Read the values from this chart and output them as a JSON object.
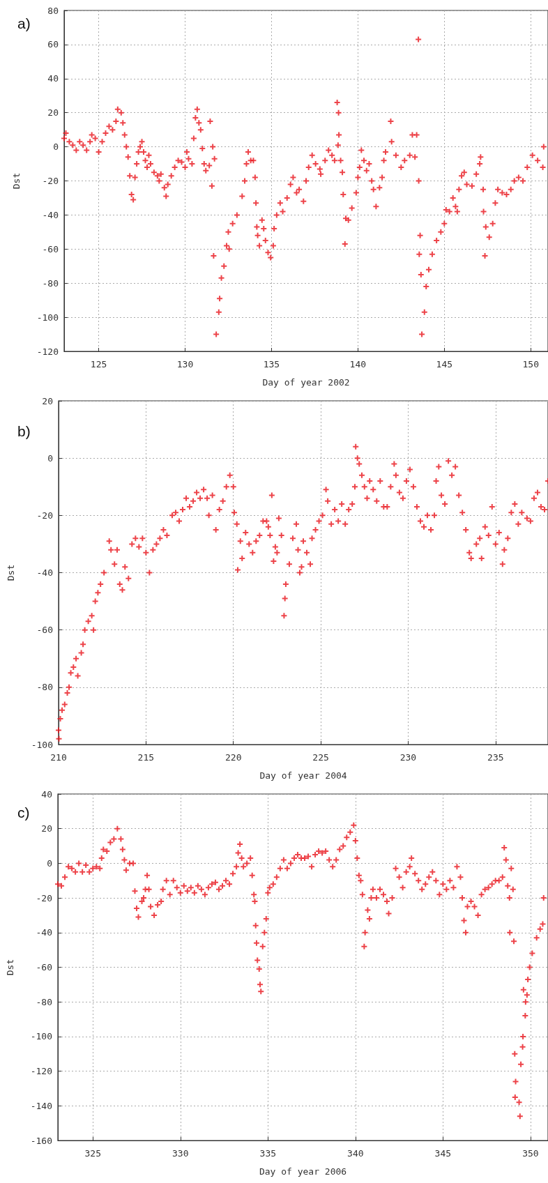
{
  "chart_data": [
    {
      "type": "scatter",
      "annotations": [
        "a)"
      ],
      "xlabel": "Day of year 2002",
      "ylabel": "Dst",
      "color": "#e8141c",
      "marker": "cross",
      "grid": true,
      "xlim": [
        123,
        151
      ],
      "xticks": [
        125,
        130,
        135,
        140,
        145,
        150
      ],
      "ylim": [
        -120,
        80
      ],
      "yticks": [
        -120,
        -100,
        -80,
        -60,
        -40,
        -20,
        0,
        20,
        40,
        60,
        80
      ],
      "x": [
        123.0,
        123.1,
        123.3,
        123.5,
        123.7,
        123.9,
        124.1,
        124.3,
        124.5,
        124.6,
        124.8,
        125.0,
        125.2,
        125.4,
        125.6,
        125.8,
        126.0,
        126.1,
        126.3,
        126.4,
        126.5,
        126.6,
        126.7,
        126.8,
        126.9,
        127.0,
        127.1,
        127.2,
        127.3,
        127.4,
        127.5,
        127.6,
        127.7,
        127.8,
        127.9,
        128.0,
        128.2,
        128.4,
        128.5,
        128.6,
        128.8,
        128.9,
        129.0,
        129.2,
        129.4,
        129.6,
        129.8,
        130.0,
        130.1,
        130.2,
        130.4,
        130.5,
        130.6,
        130.7,
        130.8,
        130.9,
        131.0,
        131.1,
        131.2,
        131.4,
        131.45,
        131.55,
        131.6,
        131.65,
        131.7,
        131.8,
        131.95,
        132.0,
        132.1,
        132.25,
        132.4,
        132.5,
        132.55,
        132.75,
        133.0,
        133.3,
        133.45,
        133.55,
        133.65,
        133.8,
        133.95,
        134.05,
        134.1,
        134.15,
        134.2,
        134.3,
        134.45,
        134.55,
        134.65,
        134.8,
        134.95,
        135.1,
        135.15,
        135.3,
        135.5,
        135.65,
        135.9,
        136.1,
        136.25,
        136.45,
        136.6,
        136.85,
        137.0,
        137.15,
        137.35,
        137.55,
        137.8,
        137.85,
        138.1,
        138.3,
        138.5,
        138.65,
        138.8,
        138.85,
        138.88,
        138.9,
        139.0,
        139.1,
        139.15,
        139.25,
        139.3,
        139.45,
        139.65,
        139.9,
        140.0,
        140.1,
        140.2,
        140.35,
        140.5,
        140.65,
        140.8,
        140.9,
        141.05,
        141.25,
        141.4,
        141.5,
        141.6,
        141.9,
        141.95,
        142.2,
        142.5,
        142.7,
        143.0,
        143.15,
        143.3,
        143.4,
        143.5,
        143.52,
        143.55,
        143.6,
        143.65,
        143.7,
        143.85,
        143.95,
        144.1,
        144.3,
        144.55,
        144.8,
        145.0,
        145.1,
        145.3,
        145.5,
        145.65,
        145.75,
        145.85,
        146.0,
        146.15,
        146.3,
        146.6,
        146.85,
        147.05,
        147.1,
        147.25,
        147.27,
        147.35,
        147.4,
        147.6,
        147.8,
        147.95,
        148.1,
        148.35,
        148.6,
        148.85,
        149.05,
        149.3,
        149.55,
        149.8,
        150.1,
        150.4,
        150.7,
        150.75
      ],
      "values": [
        5,
        8,
        3,
        1,
        -2,
        3,
        1,
        -2,
        3,
        7,
        5,
        -3,
        3,
        8,
        12,
        10,
        15,
        22,
        20,
        14,
        7,
        0,
        -6,
        -17,
        -28,
        -31,
        -18,
        -10,
        -3,
        0,
        3,
        -3,
        -8,
        -12,
        -5,
        -10,
        -15,
        -17,
        -20,
        -16,
        -24,
        -29,
        -22,
        -17,
        -12,
        -8,
        -9,
        -12,
        -3,
        -7,
        -10,
        5,
        17,
        22,
        14,
        10,
        -1,
        -10,
        -14,
        -11,
        15,
        -23,
        0,
        -64,
        -7,
        -110,
        -97,
        -89,
        -77,
        -70,
        -58,
        -50,
        -60,
        -45,
        -40,
        -29,
        -20,
        -10,
        -3,
        -8,
        -8,
        -18,
        -33,
        -47,
        -52,
        -58,
        -43,
        -48,
        -55,
        -62,
        -65,
        -58,
        -48,
        -40,
        -33,
        -38,
        -30,
        -22,
        -18,
        -27,
        -25,
        -32,
        -20,
        -12,
        -5,
        -10,
        -13,
        -16,
        -8,
        -2,
        -5,
        -8,
        26,
        1,
        20,
        7,
        -8,
        -15,
        -28,
        -57,
        -42,
        -43,
        -36,
        -27,
        -18,
        -12,
        -2,
        -8,
        -14,
        -10,
        -20,
        -25,
        -35,
        -24,
        -18,
        -8,
        -3,
        15,
        3,
        -5,
        -12,
        -8,
        -5,
        7,
        -6,
        7,
        63,
        -20,
        -63,
        -52,
        -75,
        -110,
        -97,
        -82,
        -72,
        -63,
        -55,
        -50,
        -45,
        -37,
        -38,
        -30,
        -35,
        -38,
        -25,
        -17,
        -15,
        -22,
        -23,
        -16,
        -10,
        -6,
        -25,
        -38,
        -64,
        -47,
        -53,
        -45,
        -33,
        -25,
        -27,
        -28,
        -25,
        -20,
        -18,
        -20,
        -12,
        -5,
        -8,
        -12,
        0
      ]
    },
    {
      "type": "scatter",
      "annotations": [
        "b)"
      ],
      "xlabel": "Day of year 2004",
      "ylabel": "Dst",
      "color": "#e8141c",
      "marker": "cross",
      "grid": true,
      "xlim": [
        210,
        238
      ],
      "xticks": [
        210,
        215,
        220,
        225,
        230,
        235
      ],
      "ylim": [
        -100,
        20
      ],
      "yticks": [
        -100,
        -80,
        -60,
        -40,
        -20,
        0,
        20
      ],
      "x": [
        210.0,
        210.02,
        210.1,
        210.2,
        210.35,
        210.5,
        210.6,
        210.7,
        210.85,
        211.0,
        211.1,
        211.3,
        211.4,
        211.5,
        211.7,
        211.9,
        212.0,
        212.1,
        212.25,
        212.4,
        212.6,
        212.9,
        213.0,
        213.2,
        213.35,
        213.5,
        213.65,
        213.8,
        214.0,
        214.2,
        214.4,
        214.6,
        214.8,
        215.0,
        215.2,
        215.4,
        215.6,
        215.8,
        216.0,
        216.2,
        216.5,
        216.7,
        216.9,
        217.1,
        217.3,
        217.5,
        217.7,
        217.9,
        218.1,
        218.3,
        218.5,
        218.6,
        218.8,
        219.0,
        219.2,
        219.4,
        219.6,
        219.8,
        220.0,
        220.05,
        220.2,
        220.25,
        220.4,
        220.5,
        220.7,
        220.9,
        221.1,
        221.3,
        221.5,
        221.7,
        221.9,
        222.0,
        222.1,
        222.2,
        222.3,
        222.4,
        222.5,
        222.6,
        222.75,
        222.9,
        222.95,
        223.0,
        223.2,
        223.4,
        223.6,
        223.7,
        223.8,
        223.9,
        224.0,
        224.2,
        224.4,
        224.5,
        224.7,
        224.9,
        225.1,
        225.3,
        225.4,
        225.6,
        225.8,
        226.0,
        226.2,
        226.4,
        226.6,
        226.8,
        226.95,
        227.0,
        227.1,
        227.2,
        227.35,
        227.5,
        227.65,
        227.8,
        228.0,
        228.2,
        228.4,
        228.6,
        228.8,
        229.0,
        229.2,
        229.3,
        229.5,
        229.7,
        229.9,
        230.1,
        230.3,
        230.5,
        230.7,
        230.9,
        231.1,
        231.3,
        231.5,
        231.6,
        231.75,
        231.9,
        232.1,
        232.3,
        232.5,
        232.7,
        232.9,
        233.1,
        233.3,
        233.5,
        233.6,
        233.9,
        234.1,
        234.2,
        234.4,
        234.6,
        234.8,
        235.0,
        235.2,
        235.4,
        235.5,
        235.7,
        235.9,
        236.1,
        236.3,
        236.5,
        236.8,
        237.0,
        237.2,
        237.4,
        237.6,
        237.8,
        238.0
      ],
      "values": [
        -95,
        -98,
        -91,
        -88,
        -86,
        -82,
        -80,
        -75,
        -73,
        -70,
        -76,
        -68,
        -65,
        -60,
        -57,
        -55,
        -60,
        -50,
        -47,
        -44,
        -40,
        -29,
        -32,
        -37,
        -32,
        -44,
        -46,
        -38,
        -42,
        -30,
        -28,
        -31,
        -28,
        -33,
        -40,
        -32,
        -30,
        -28,
        -25,
        -27,
        -20,
        -19,
        -22,
        -18,
        -14,
        -17,
        -15,
        -12,
        -14,
        -11,
        -14,
        -20,
        -13,
        -25,
        -18,
        -15,
        -10,
        -6,
        -10,
        -19,
        -23,
        -39,
        -29,
        -35,
        -26,
        -30,
        -33,
        -29,
        -27,
        -22,
        -22,
        -24,
        -27,
        -13,
        -36,
        -31,
        -33,
        -21,
        -27,
        -55,
        -49,
        -44,
        -37,
        -28,
        -23,
        -32,
        -40,
        -38,
        -29,
        -33,
        -37,
        -28,
        -25,
        -22,
        -20,
        -11,
        -15,
        -23,
        -18,
        -22,
        -16,
        -23,
        -18,
        -16,
        -10,
        4,
        0,
        -2,
        -6,
        -10,
        -14,
        -8,
        -11,
        -15,
        -8,
        -17,
        -17,
        -10,
        -2,
        -6,
        -12,
        -14,
        -8,
        -4,
        -10,
        -17,
        -22,
        -24,
        -20,
        -25,
        -20,
        -8,
        -3,
        -13,
        -16,
        -1,
        -6,
        -3,
        -13,
        -19,
        -25,
        -33,
        -35,
        -30,
        -28,
        -35,
        -24,
        -27,
        -17,
        -30,
        -26,
        -37,
        -32,
        -28,
        -19,
        -16,
        -23,
        -19,
        -21,
        -22,
        -14,
        -12,
        -17,
        -18,
        -8
      ]
    },
    {
      "type": "scatter",
      "annotations": [
        "c)"
      ],
      "xlabel": "Day of year 2006",
      "ylabel": "Dst",
      "color": "#e8141c",
      "marker": "cross",
      "grid": true,
      "xlim": [
        323,
        351
      ],
      "xticks": [
        325,
        330,
        335,
        340,
        345,
        350
      ],
      "ylim": [
        -160,
        40
      ],
      "yticks": [
        -160,
        -140,
        -120,
        -100,
        -80,
        -60,
        -40,
        -20,
        0,
        20,
        40
      ],
      "x": [
        323.0,
        323.2,
        323.4,
        323.6,
        323.8,
        324.0,
        324.2,
        324.4,
        324.6,
        324.8,
        325.0,
        325.2,
        325.4,
        325.5,
        325.6,
        325.8,
        326.0,
        326.2,
        326.4,
        326.6,
        326.7,
        326.8,
        326.9,
        327.1,
        327.3,
        327.4,
        327.5,
        327.6,
        327.8,
        327.9,
        328.0,
        328.1,
        328.2,
        328.3,
        328.5,
        328.7,
        328.9,
        329.0,
        329.2,
        329.4,
        329.6,
        329.8,
        330.0,
        330.2,
        330.4,
        330.6,
        330.8,
        331.0,
        331.2,
        331.4,
        331.6,
        331.8,
        332.0,
        332.2,
        332.4,
        332.6,
        332.8,
        333.0,
        333.2,
        333.3,
        333.4,
        333.5,
        333.6,
        333.8,
        334.0,
        334.1,
        334.2,
        334.25,
        334.3,
        334.35,
        334.4,
        334.5,
        334.55,
        334.6,
        334.7,
        334.8,
        334.9,
        335.0,
        335.1,
        335.3,
        335.5,
        335.7,
        335.9,
        336.1,
        336.3,
        336.5,
        336.7,
        336.9,
        337.1,
        337.3,
        337.5,
        337.7,
        337.9,
        338.1,
        338.3,
        338.5,
        338.7,
        338.9,
        339.1,
        339.3,
        339.5,
        339.7,
        339.9,
        340.0,
        340.1,
        340.2,
        340.3,
        340.4,
        340.5,
        340.55,
        340.7,
        340.8,
        340.9,
        341.0,
        341.2,
        341.4,
        341.6,
        341.8,
        341.9,
        342.1,
        342.3,
        342.5,
        342.7,
        342.9,
        343.1,
        343.2,
        343.4,
        343.6,
        343.8,
        344.0,
        344.2,
        344.4,
        344.6,
        344.8,
        345.0,
        345.2,
        345.4,
        345.6,
        345.8,
        346.0,
        346.1,
        346.2,
        346.3,
        346.4,
        346.6,
        346.8,
        347.0,
        347.2,
        347.4,
        347.6,
        347.8,
        348.0,
        348.2,
        348.4,
        348.5,
        348.6,
        348.7,
        348.8,
        348.82,
        348.9,
        349.0,
        349.05,
        349.1,
        349.12,
        349.15,
        349.35,
        349.4,
        349.45,
        349.55,
        349.57,
        349.6,
        349.7,
        349.72,
        349.8,
        349.85,
        349.95,
        350.1,
        350.35,
        350.55,
        350.7,
        350.75
      ],
      "values": [
        -12,
        -13,
        -8,
        -2,
        -3,
        -5,
        0,
        -5,
        -1,
        -5,
        -3,
        -2,
        -3,
        3,
        8,
        7,
        12,
        14,
        20,
        14,
        8,
        2,
        -4,
        0,
        0,
        -16,
        -26,
        -31,
        -22,
        -20,
        -15,
        -7,
        -15,
        -25,
        -30,
        -24,
        -22,
        -15,
        -10,
        -18,
        -10,
        -14,
        -17,
        -13,
        -16,
        -14,
        -17,
        -13,
        -15,
        -18,
        -14,
        -12,
        -11,
        -15,
        -13,
        -10,
        -12,
        -6,
        -2,
        6,
        11,
        3,
        -2,
        0,
        3,
        -7,
        -18,
        -22,
        -36,
        -46,
        -56,
        -61,
        -70,
        -74,
        -48,
        -40,
        -32,
        -17,
        -14,
        -12,
        -8,
        -3,
        2,
        -3,
        0,
        3,
        5,
        3,
        3,
        4,
        -2,
        5,
        7,
        6,
        7,
        2,
        -2,
        2,
        8,
        10,
        15,
        18,
        22,
        13,
        3,
        -7,
        -10,
        -18,
        -48,
        -40,
        -27,
        -32,
        -20,
        -15,
        -20,
        -15,
        -18,
        -22,
        -29,
        -20,
        -3,
        -8,
        -14,
        -5,
        -2,
        3,
        -6,
        -10,
        -15,
        -12,
        -8,
        -5,
        -10,
        -18,
        -12,
        -15,
        -10,
        -14,
        -2,
        -8,
        -20,
        -33,
        -40,
        -25,
        -22,
        -25,
        -30,
        -18,
        -15,
        -14,
        -12,
        -10,
        -10,
        -8,
        9,
        2,
        -13,
        -20,
        -40,
        -3,
        -15,
        -45,
        -110,
        -135,
        -126,
        -138,
        -146,
        -116,
        -106,
        -100,
        -73,
        -88,
        -80,
        -76,
        -67,
        -60,
        -52,
        -43,
        -38,
        -35,
        -20
      ]
    }
  ]
}
